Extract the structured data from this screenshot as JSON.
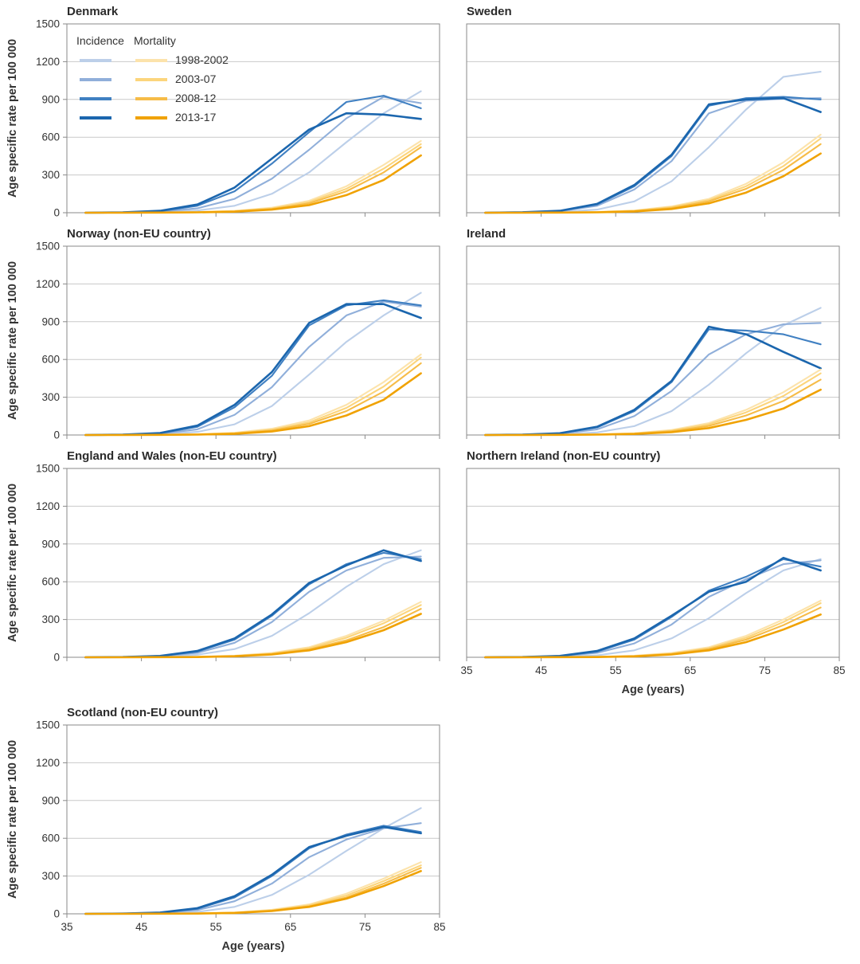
{
  "figure": {
    "description": "Small-multiples line charts of age specific incidence and mortality rates per 100 000 by age, four time periods, seven countries"
  },
  "legend": {
    "incidence_header": "Incidence",
    "mortality_header": "Mortality",
    "periods": [
      "1998-2002",
      "2003-07",
      "2008-12",
      "2013-17"
    ]
  },
  "colors": {
    "incidence": [
      "#bccfe9",
      "#90afda",
      "#4080c2",
      "#1b66ae"
    ],
    "mortality": [
      "#fce3ab",
      "#fcd57c",
      "#f6bc48",
      "#f0a202"
    ],
    "grid": "#c9c9c9",
    "frame": "#8a8a8a",
    "text": "#333333"
  },
  "chart_data": {
    "type": "line",
    "x_label": "Age (years)",
    "y_label": "Age specific rate per 100 000",
    "x_range": [
      35,
      85
    ],
    "y_range": [
      0,
      1500
    ],
    "x_ticks": [
      35,
      45,
      55,
      65,
      75,
      85
    ],
    "y_ticks": [
      0,
      300,
      600,
      900,
      1200,
      1500
    ],
    "grid": "horizontal",
    "legend_position": "inside first panel, top-left",
    "periods": [
      "1998-2002",
      "2003-07",
      "2008-12",
      "2013-17"
    ],
    "x_points": [
      37.5,
      42.5,
      47.5,
      52.5,
      57.5,
      62.5,
      67.5,
      72.5,
      77.5,
      82.5
    ],
    "panels": [
      {
        "title": "Denmark",
        "show_y_axis": true,
        "show_x_axis": false,
        "show_legend": true,
        "incidence": {
          "1998-2002": [
            0,
            2,
            5,
            18,
            55,
            150,
            320,
            560,
            790,
            965
          ],
          "2003-07": [
            0,
            2,
            8,
            35,
            110,
            270,
            500,
            750,
            920,
            870
          ],
          "2008-12": [
            0,
            3,
            12,
            55,
            170,
            390,
            640,
            880,
            930,
            830
          ],
          "2013-17": [
            0,
            3,
            15,
            65,
            200,
            430,
            660,
            790,
            780,
            745
          ]
        },
        "mortality": {
          "1998-2002": [
            0,
            0,
            2,
            5,
            15,
            40,
            95,
            210,
            380,
            570
          ],
          "2003-07": [
            0,
            0,
            1,
            4,
            12,
            35,
            85,
            190,
            350,
            545
          ],
          "2008-12": [
            0,
            0,
            1,
            3,
            10,
            30,
            75,
            170,
            320,
            520
          ],
          "2013-17": [
            0,
            0,
            1,
            3,
            8,
            25,
            60,
            140,
            260,
            455
          ]
        }
      },
      {
        "title": "Sweden",
        "show_y_axis": false,
        "show_x_axis": false,
        "show_legend": false,
        "incidence": {
          "1998-2002": [
            0,
            2,
            6,
            25,
            90,
            250,
            520,
            820,
            1080,
            1120
          ],
          "2003-07": [
            0,
            3,
            12,
            55,
            185,
            410,
            790,
            890,
            905,
            910
          ],
          "2008-12": [
            0,
            3,
            14,
            65,
            210,
            450,
            850,
            910,
            920,
            900
          ],
          "2013-17": [
            0,
            4,
            15,
            70,
            220,
            460,
            860,
            900,
            910,
            800
          ]
        },
        "mortality": {
          "1998-2002": [
            0,
            0,
            2,
            6,
            18,
            50,
            110,
            230,
            400,
            620
          ],
          "2003-07": [
            0,
            0,
            2,
            5,
            15,
            45,
            100,
            210,
            370,
            590
          ],
          "2008-12": [
            0,
            0,
            1,
            4,
            12,
            38,
            90,
            190,
            340,
            545
          ],
          "2013-17": [
            0,
            0,
            1,
            3,
            10,
            30,
            75,
            160,
            290,
            470
          ]
        }
      },
      {
        "title": "Norway (non-EU country)",
        "show_y_axis": true,
        "show_x_axis": false,
        "show_legend": false,
        "incidence": {
          "1998-2002": [
            0,
            2,
            6,
            25,
            85,
            230,
            480,
            740,
            950,
            1130
          ],
          "2003-07": [
            0,
            3,
            10,
            45,
            160,
            380,
            700,
            950,
            1060,
            1020
          ],
          "2008-12": [
            0,
            3,
            14,
            65,
            220,
            470,
            870,
            1030,
            1070,
            1030
          ],
          "2013-17": [
            0,
            3,
            16,
            75,
            240,
            500,
            890,
            1040,
            1040,
            930
          ]
        },
        "mortality": {
          "1998-2002": [
            0,
            0,
            2,
            6,
            18,
            50,
            115,
            240,
            420,
            640
          ],
          "2003-07": [
            0,
            0,
            2,
            5,
            15,
            42,
            100,
            215,
            385,
            615
          ],
          "2008-12": [
            0,
            0,
            1,
            4,
            12,
            36,
            88,
            190,
            345,
            570
          ],
          "2013-17": [
            0,
            0,
            1,
            3,
            9,
            28,
            70,
            155,
            280,
            490
          ]
        }
      },
      {
        "title": "Ireland",
        "show_y_axis": false,
        "show_x_axis": false,
        "show_legend": false,
        "incidence": {
          "1998-2002": [
            0,
            2,
            5,
            20,
            70,
            190,
            400,
            650,
            870,
            1010
          ],
          "2003-07": [
            0,
            2,
            10,
            45,
            150,
            350,
            640,
            800,
            880,
            890
          ],
          "2008-12": [
            0,
            3,
            13,
            60,
            190,
            420,
            840,
            830,
            800,
            720
          ],
          "2013-17": [
            0,
            3,
            14,
            65,
            200,
            430,
            860,
            800,
            660,
            530
          ]
        },
        "mortality": {
          "1998-2002": [
            0,
            0,
            2,
            5,
            14,
            40,
            95,
            200,
            340,
            520
          ],
          "2003-07": [
            0,
            0,
            1,
            4,
            12,
            35,
            85,
            180,
            310,
            490
          ],
          "2008-12": [
            0,
            0,
            1,
            3,
            10,
            30,
            72,
            155,
            270,
            440
          ],
          "2013-17": [
            0,
            0,
            1,
            3,
            8,
            22,
            55,
            120,
            210,
            360
          ]
        }
      },
      {
        "title": "England and Wales (non-EU country)",
        "show_y_axis": true,
        "show_x_axis": false,
        "show_legend": false,
        "incidence": {
          "1998-2002": [
            0,
            1,
            5,
            20,
            65,
            170,
            350,
            560,
            740,
            850
          ],
          "2003-07": [
            0,
            2,
            8,
            35,
            115,
            280,
            520,
            690,
            790,
            800
          ],
          "2008-12": [
            0,
            2,
            10,
            45,
            140,
            330,
            580,
            740,
            830,
            780
          ],
          "2013-17": [
            0,
            2,
            11,
            50,
            150,
            340,
            590,
            730,
            850,
            765
          ]
        },
        "mortality": {
          "1998-2002": [
            0,
            0,
            1,
            4,
            12,
            35,
            80,
            170,
            290,
            440
          ],
          "2003-07": [
            0,
            0,
            1,
            3,
            10,
            30,
            72,
            155,
            270,
            415
          ],
          "2008-12": [
            0,
            0,
            1,
            3,
            9,
            26,
            62,
            135,
            240,
            385
          ],
          "2013-17": [
            0,
            0,
            1,
            2,
            8,
            22,
            55,
            120,
            215,
            345
          ]
        }
      },
      {
        "title": "Northern Ireland (non-EU country)",
        "show_y_axis": false,
        "show_x_axis": true,
        "show_legend": false,
        "incidence": {
          "1998-2002": [
            0,
            1,
            4,
            15,
            55,
            150,
            310,
            510,
            690,
            780
          ],
          "2003-07": [
            0,
            2,
            8,
            35,
            110,
            260,
            480,
            620,
            740,
            770
          ],
          "2008-12": [
            0,
            2,
            10,
            45,
            140,
            320,
            530,
            640,
            780,
            720
          ],
          "2013-17": [
            0,
            2,
            11,
            50,
            150,
            330,
            520,
            600,
            790,
            690
          ]
        },
        "mortality": {
          "1998-2002": [
            0,
            0,
            1,
            4,
            12,
            35,
            80,
            170,
            300,
            450
          ],
          "2003-07": [
            0,
            0,
            1,
            3,
            10,
            30,
            72,
            155,
            280,
            430
          ],
          "2008-12": [
            0,
            0,
            1,
            3,
            9,
            26,
            65,
            140,
            255,
            395
          ],
          "2013-17": [
            0,
            0,
            1,
            2,
            7,
            22,
            55,
            120,
            220,
            340
          ]
        }
      },
      {
        "title": "Scotland (non-EU country)",
        "show_y_axis": true,
        "show_x_axis": true,
        "show_legend": false,
        "incidence": {
          "1998-2002": [
            0,
            1,
            4,
            15,
            55,
            150,
            310,
            500,
            680,
            840
          ],
          "2003-07": [
            0,
            2,
            7,
            30,
            100,
            240,
            450,
            590,
            680,
            720
          ],
          "2008-12": [
            0,
            2,
            9,
            40,
            130,
            300,
            520,
            630,
            700,
            650
          ],
          "2013-17": [
            0,
            2,
            10,
            45,
            140,
            310,
            530,
            620,
            690,
            640
          ]
        },
        "mortality": {
          "1998-2002": [
            0,
            0,
            1,
            4,
            11,
            32,
            75,
            160,
            280,
            410
          ],
          "2003-07": [
            0,
            0,
            1,
            3,
            9,
            28,
            68,
            145,
            260,
            385
          ],
          "2008-12": [
            0,
            0,
            1,
            3,
            8,
            25,
            60,
            130,
            240,
            365
          ],
          "2013-17": [
            0,
            0,
            1,
            2,
            7,
            22,
            55,
            120,
            220,
            340
          ]
        }
      }
    ]
  }
}
